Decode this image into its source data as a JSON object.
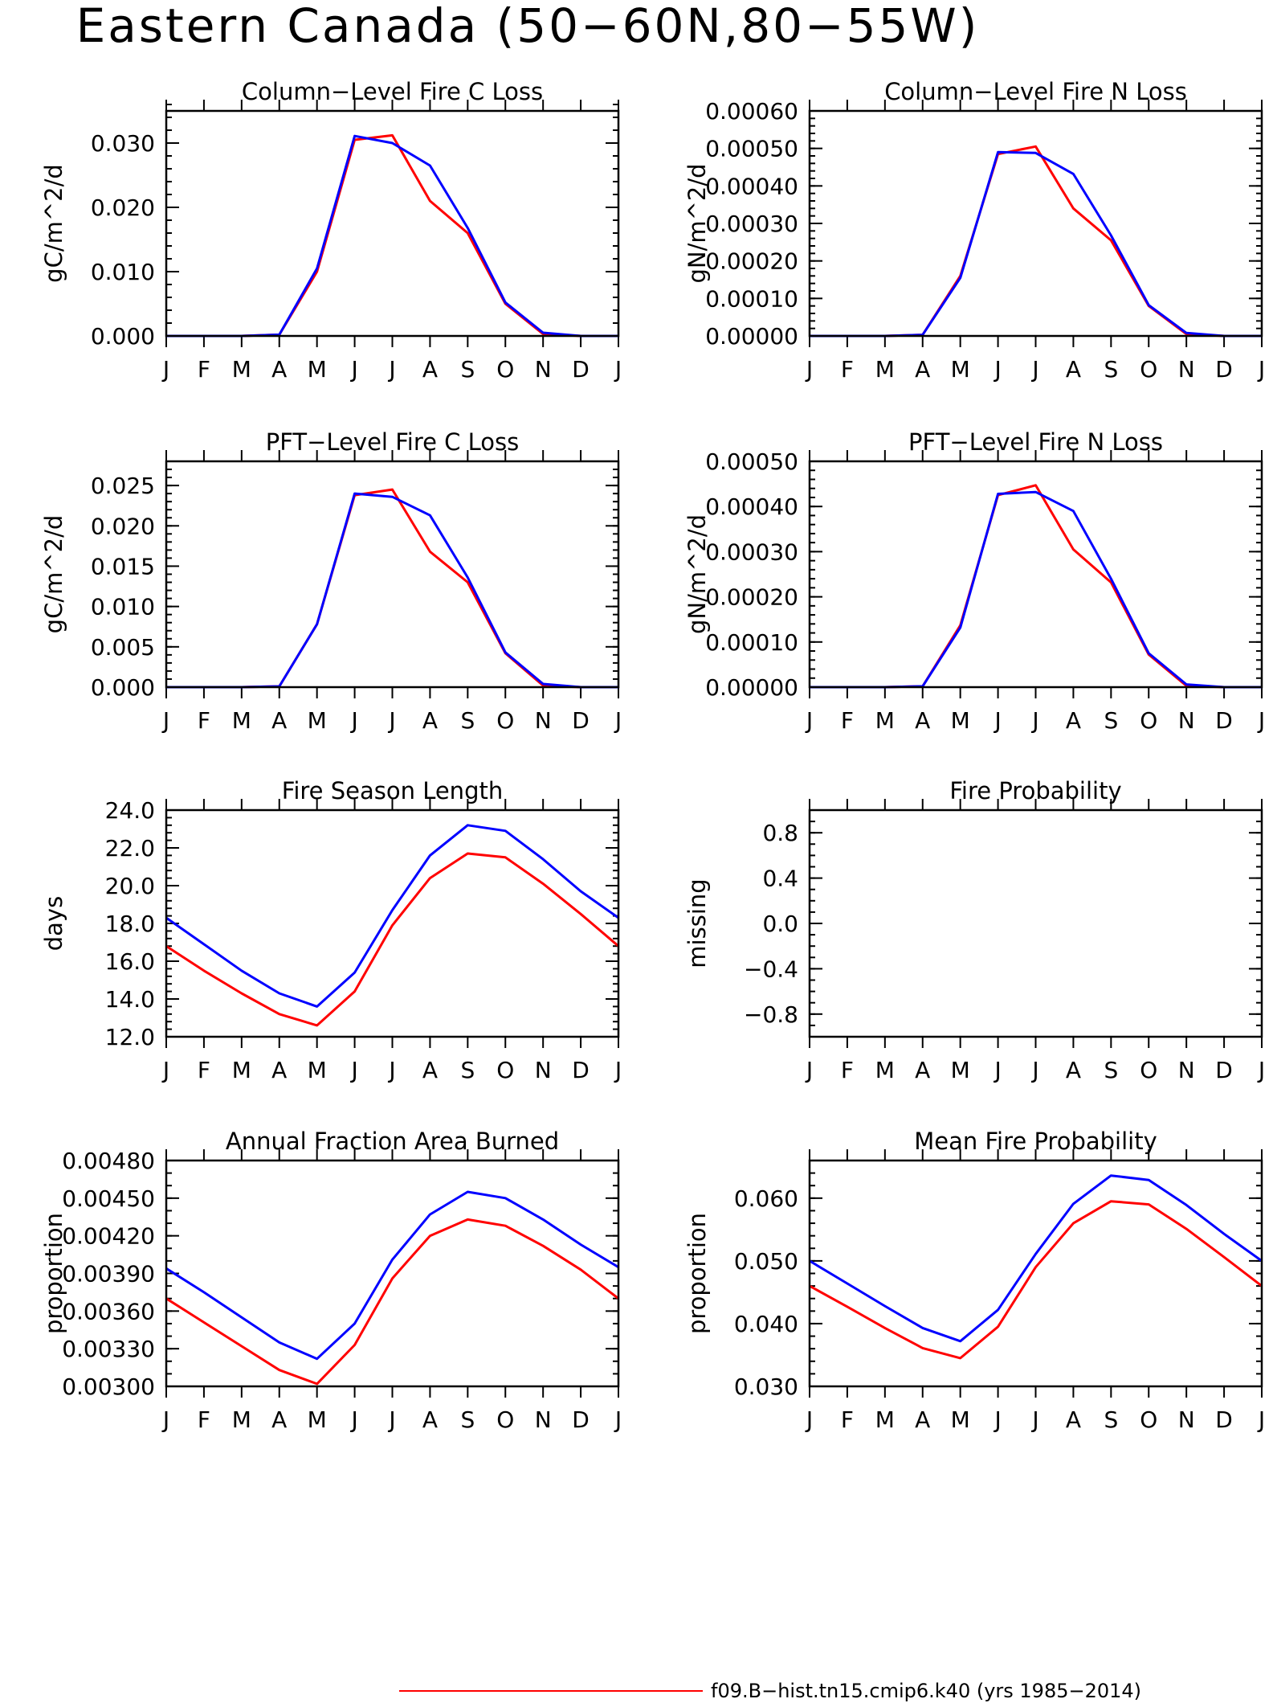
{
  "title": "Eastern Canada (50−60N,80−55W)",
  "colors": {
    "case": "#ff0000",
    "control": "#0000ff",
    "axis": "#000000"
  },
  "legend": {
    "items": [
      {
        "label": "f09.B−hist.tn15.cmip6.k40 (yrs 1985−2014)",
        "color": "#ff0000"
      }
    ]
  },
  "chart_data": [
    {
      "type": "line",
      "title": "Column−Level Fire C Loss",
      "ylabel": "gC/m^2/d",
      "categories": [
        "J",
        "F",
        "M",
        "A",
        "M",
        "J",
        "J",
        "A",
        "S",
        "O",
        "N",
        "D",
        "J"
      ],
      "ylim": [
        0,
        0.035
      ],
      "yticks": [
        0,
        0.01,
        0.02,
        0.03
      ],
      "ytick_labels": [
        "0.000",
        "0.010",
        "0.020",
        "0.030"
      ],
      "yminor": 0.002,
      "series": [
        {
          "values": [
            0,
            0,
            0,
            0.0002,
            0.01,
            0.0305,
            0.0312,
            0.021,
            0.016,
            0.005,
            0.0003,
            0,
            0
          ],
          "color": "#ff0000"
        },
        {
          "values": [
            0,
            0,
            0,
            0.0002,
            0.0105,
            0.0311,
            0.03,
            0.0265,
            0.0168,
            0.0052,
            0.0005,
            0,
            0
          ],
          "color": "#0000ff"
        }
      ]
    },
    {
      "type": "line",
      "title": "Column−Level Fire N Loss",
      "ylabel": "gN/m^2/d",
      "categories": [
        "J",
        "F",
        "M",
        "A",
        "M",
        "J",
        "J",
        "A",
        "S",
        "O",
        "N",
        "D",
        "J"
      ],
      "ylim": [
        0,
        0.0006
      ],
      "yticks": [
        0,
        0.0001,
        0.0002,
        0.0003,
        0.0004,
        0.0005,
        0.0006
      ],
      "ytick_labels": [
        "0.00000",
        "0.00010",
        "0.00020",
        "0.00030",
        "0.00040",
        "0.00050",
        "0.00060"
      ],
      "yminor": 2e-05,
      "series": [
        {
          "values": [
            0,
            0,
            0,
            3e-06,
            0.00016,
            0.000485,
            0.000505,
            0.00034,
            0.000255,
            8e-05,
            5e-06,
            0,
            0
          ],
          "color": "#ff0000"
        },
        {
          "values": [
            0,
            0,
            0,
            3e-06,
            0.000155,
            0.00049,
            0.000488,
            0.000432,
            0.000268,
            8.2e-05,
            8e-06,
            0,
            0
          ],
          "color": "#0000ff"
        }
      ]
    },
    {
      "type": "line",
      "title": "PFT−Level Fire C Loss",
      "ylabel": "gC/m^2/d",
      "categories": [
        "J",
        "F",
        "M",
        "A",
        "M",
        "J",
        "J",
        "A",
        "S",
        "O",
        "N",
        "D",
        "J"
      ],
      "ylim": [
        0,
        0.028
      ],
      "yticks": [
        0,
        0.005,
        0.01,
        0.015,
        0.02,
        0.025
      ],
      "ytick_labels": [
        "0.000",
        "0.005",
        "0.010",
        "0.015",
        "0.020",
        "0.025"
      ],
      "yminor": 0.001,
      "series": [
        {
          "values": [
            0,
            0,
            0,
            0.0001,
            0.0078,
            0.0238,
            0.0245,
            0.0168,
            0.013,
            0.0042,
            0.0002,
            0,
            0
          ],
          "color": "#ff0000"
        },
        {
          "values": [
            0,
            0,
            0,
            0.0001,
            0.0078,
            0.024,
            0.0236,
            0.0213,
            0.0136,
            0.0043,
            0.0004,
            0,
            0
          ],
          "color": "#0000ff"
        }
      ]
    },
    {
      "type": "line",
      "title": "PFT−Level Fire N Loss",
      "ylabel": "gN/m^2/d",
      "categories": [
        "J",
        "F",
        "M",
        "A",
        "M",
        "J",
        "J",
        "A",
        "S",
        "O",
        "N",
        "D",
        "J"
      ],
      "ylim": [
        0,
        0.0005
      ],
      "yticks": [
        0,
        0.0001,
        0.0002,
        0.0003,
        0.0004,
        0.0005
      ],
      "ytick_labels": [
        "0.00000",
        "0.00010",
        "0.00020",
        "0.00030",
        "0.00040",
        "0.00050"
      ],
      "yminor": 2e-05,
      "series": [
        {
          "values": [
            0,
            0,
            0,
            2e-06,
            0.000137,
            0.000425,
            0.000447,
            0.000305,
            0.000232,
            7.2e-05,
            3e-06,
            0,
            0
          ],
          "color": "#ff0000"
        },
        {
          "values": [
            0,
            0,
            0,
            2e-06,
            0.000132,
            0.000428,
            0.000432,
            0.00039,
            0.00024,
            7.5e-05,
            6e-06,
            0,
            0
          ],
          "color": "#0000ff"
        }
      ]
    },
    {
      "type": "line",
      "title": "Fire Season Length",
      "ylabel": "days",
      "categories": [
        "J",
        "F",
        "M",
        "A",
        "M",
        "J",
        "J",
        "A",
        "S",
        "O",
        "N",
        "D",
        "J"
      ],
      "ylim": [
        12,
        24
      ],
      "yticks": [
        12,
        14,
        16,
        18,
        20,
        22,
        24
      ],
      "ytick_labels": [
        "12.0",
        "14.0",
        "16.0",
        "18.0",
        "20.0",
        "22.0",
        "24.0"
      ],
      "yminor": 0.4,
      "series": [
        {
          "values": [
            16.8,
            15.5,
            14.3,
            13.2,
            12.6,
            14.4,
            17.9,
            20.4,
            21.7,
            21.5,
            20.1,
            18.5,
            16.8
          ],
          "color": "#ff0000"
        },
        {
          "values": [
            18.3,
            16.9,
            15.5,
            14.3,
            13.6,
            15.4,
            18.7,
            21.6,
            23.2,
            22.9,
            21.4,
            19.7,
            18.3
          ],
          "color": "#0000ff"
        }
      ]
    },
    {
      "type": "line",
      "title": "Fire Probability",
      "ylabel": "missing",
      "categories": [
        "J",
        "F",
        "M",
        "A",
        "M",
        "J",
        "J",
        "A",
        "S",
        "O",
        "N",
        "D",
        "J"
      ],
      "ylim": [
        -1,
        1
      ],
      "yticks": [
        -0.8,
        -0.4,
        0,
        0.4,
        0.8
      ],
      "ytick_labels": [
        "−0.8",
        "−0.4",
        "0.0",
        "0.4",
        "0.8"
      ],
      "yminor": 0.1,
      "series": []
    },
    {
      "type": "line",
      "title": "Annual Fraction Area Burned",
      "ylabel": "proportion",
      "categories": [
        "J",
        "F",
        "M",
        "A",
        "M",
        "J",
        "J",
        "A",
        "S",
        "O",
        "N",
        "D",
        "J"
      ],
      "ylim": [
        0.003,
        0.0048
      ],
      "yticks": [
        0.003,
        0.0033,
        0.0036,
        0.0039,
        0.0042,
        0.0045,
        0.0048
      ],
      "ytick_labels": [
        "0.00300",
        "0.00330",
        "0.00360",
        "0.00390",
        "0.00420",
        "0.00450",
        "0.00480"
      ],
      "yminor": 0.0001,
      "series": [
        {
          "values": [
            0.0037,
            0.00351,
            0.00332,
            0.00313,
            0.00302,
            0.00333,
            0.00386,
            0.0042,
            0.00433,
            0.00428,
            0.00412,
            0.00393,
            0.0037
          ],
          "color": "#ff0000"
        },
        {
          "values": [
            0.00394,
            0.00375,
            0.00355,
            0.00335,
            0.00322,
            0.0035,
            0.00401,
            0.00437,
            0.00455,
            0.0045,
            0.00433,
            0.00413,
            0.00395
          ],
          "color": "#0000ff"
        }
      ]
    },
    {
      "type": "line",
      "title": "Mean Fire Probability",
      "ylabel": "proportion",
      "categories": [
        "J",
        "F",
        "M",
        "A",
        "M",
        "J",
        "J",
        "A",
        "S",
        "O",
        "N",
        "D",
        "J"
      ],
      "ylim": [
        0.03,
        0.066
      ],
      "yticks": [
        0.03,
        0.04,
        0.05,
        0.06
      ],
      "ytick_labels": [
        "0.030",
        "0.040",
        "0.050",
        "0.060"
      ],
      "yminor": 0.002,
      "series": [
        {
          "values": [
            0.046,
            0.0427,
            0.0393,
            0.0361,
            0.0345,
            0.0395,
            0.049,
            0.056,
            0.0595,
            0.059,
            0.0551,
            0.0506,
            0.046
          ],
          "color": "#ff0000"
        },
        {
          "values": [
            0.05,
            0.0464,
            0.0428,
            0.0393,
            0.0372,
            0.0422,
            0.0511,
            0.0591,
            0.0636,
            0.0629,
            0.0589,
            0.0543,
            0.05
          ],
          "color": "#0000ff"
        }
      ]
    }
  ]
}
